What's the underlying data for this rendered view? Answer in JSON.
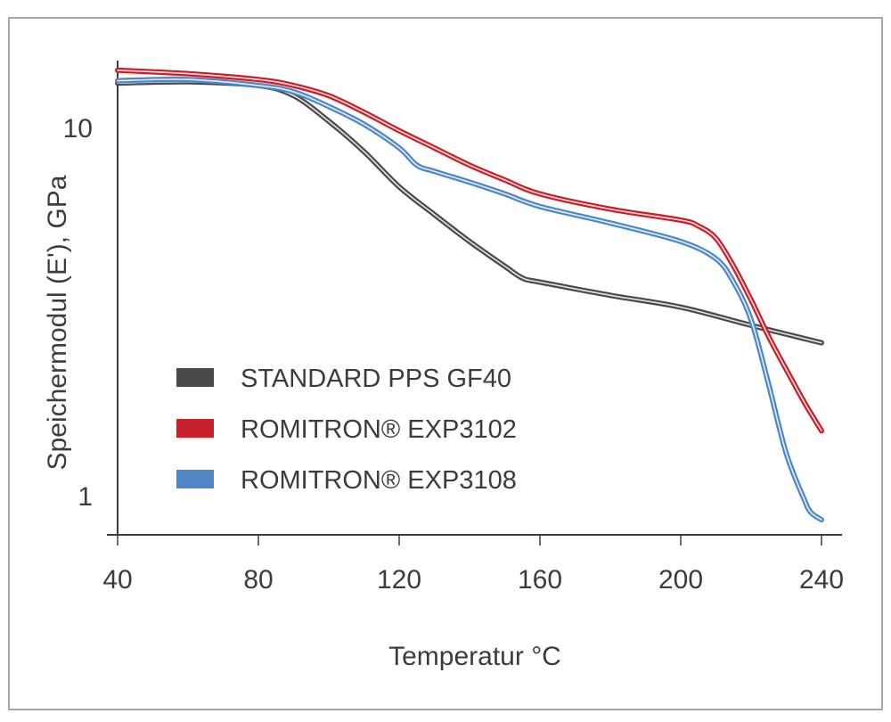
{
  "chart_data": {
    "type": "line",
    "xlabel": "Temperatur °C",
    "ylabel": "Speichermodul (E'), GPa",
    "xlim": [
      40,
      242
    ],
    "ylim": [
      0.8,
      15
    ],
    "yscale": "log",
    "xticks": [
      40,
      80,
      120,
      160,
      200,
      240
    ],
    "yticks": [
      1,
      10
    ],
    "legend_position": "bottom-left",
    "series": [
      {
        "name": "STANDARD PPS GF40",
        "color": "#4a4a4a",
        "x": [
          40,
          60,
          80,
          90,
          100,
          110,
          120,
          130,
          140,
          150,
          155,
          160,
          180,
          200,
          220,
          240
        ],
        "y": [
          13.2,
          13.3,
          13.0,
          12.2,
          10.4,
          8.6,
          6.9,
          5.8,
          4.9,
          4.2,
          3.9,
          3.8,
          3.5,
          3.25,
          2.9,
          2.6
        ]
      },
      {
        "name": "ROMITRON® EXP3102",
        "color": "#c8202a",
        "x": [
          40,
          60,
          80,
          90,
          100,
          110,
          120,
          130,
          140,
          150,
          160,
          180,
          200,
          205,
          210,
          215,
          220,
          225,
          230,
          235,
          240
        ],
        "y": [
          14.3,
          14.0,
          13.5,
          13.0,
          12.2,
          11.0,
          9.8,
          8.8,
          7.9,
          7.2,
          6.6,
          6.0,
          5.6,
          5.4,
          5.0,
          4.2,
          3.4,
          2.7,
          2.2,
          1.8,
          1.5
        ]
      },
      {
        "name": "ROMITRON® EXP3108",
        "color": "#4f86c6",
        "x": [
          40,
          60,
          80,
          90,
          100,
          110,
          120,
          125,
          130,
          140,
          150,
          160,
          180,
          200,
          210,
          215,
          220,
          225,
          230,
          235,
          237,
          240
        ],
        "y": [
          13.4,
          13.5,
          13.0,
          12.5,
          11.4,
          10.2,
          8.8,
          7.9,
          7.6,
          7.1,
          6.6,
          6.1,
          5.5,
          4.9,
          4.4,
          3.8,
          3.0,
          2.0,
          1.3,
          0.98,
          0.9,
          0.86
        ]
      }
    ]
  }
}
